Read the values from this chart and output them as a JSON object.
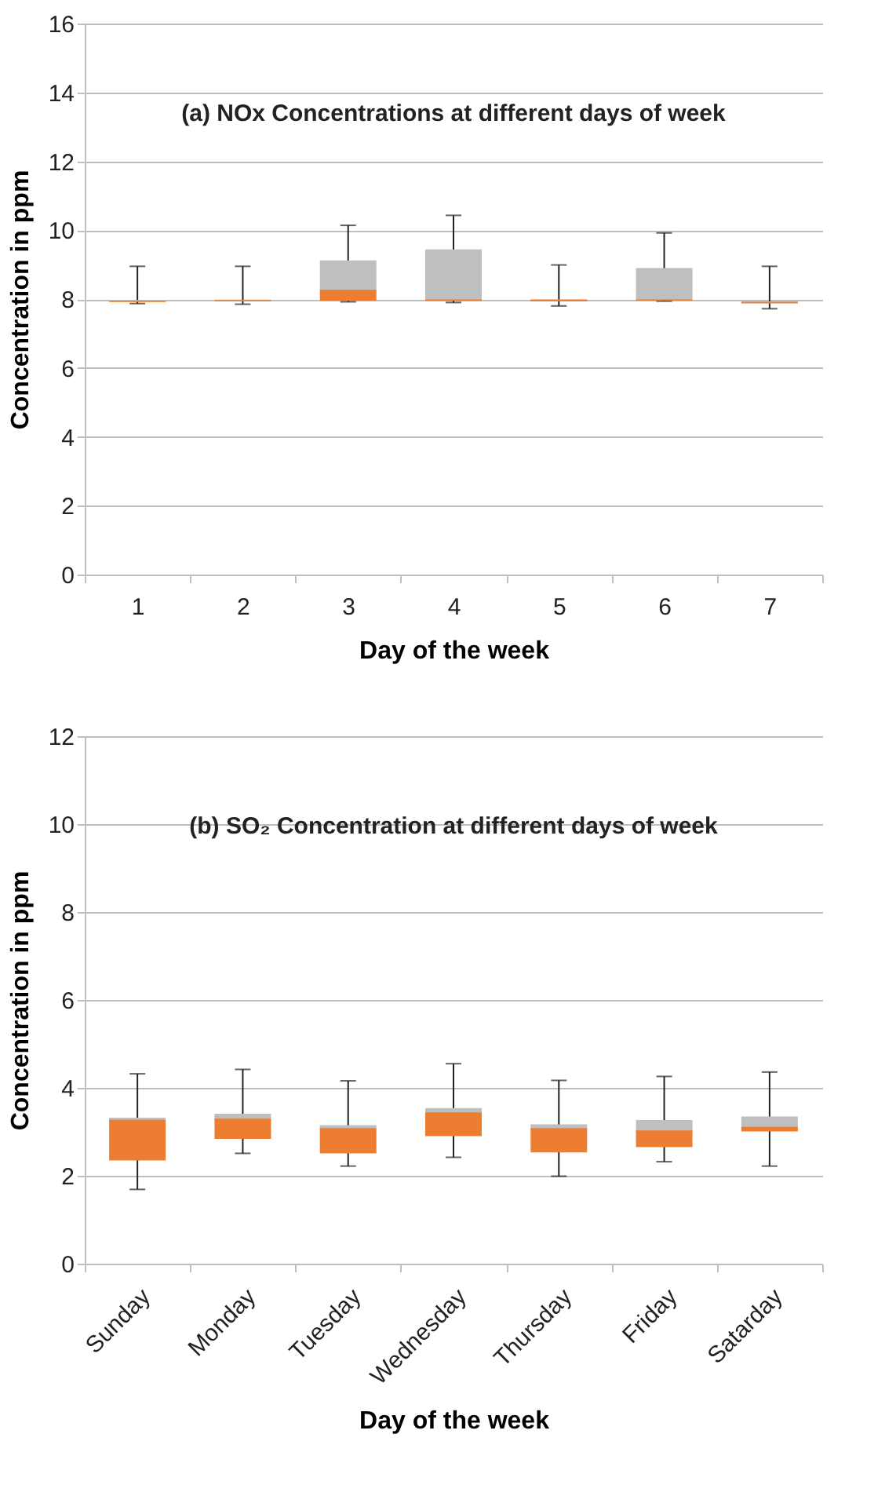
{
  "chart_data": [
    {
      "type": "box",
      "title": "(a) NOx Concentrations at different days of week",
      "xlabel": "Day of the week",
      "ylabel": "Concentration in ppm",
      "categories": [
        "1",
        "2",
        "3",
        "4",
        "5",
        "6",
        "7"
      ],
      "ylim": [
        0,
        16
      ],
      "yticks": [
        0,
        2,
        4,
        6,
        8,
        10,
        12,
        14,
        16
      ],
      "grid": "y",
      "color": "#ed7d31",
      "boxes": [
        {
          "low": 7.87,
          "q1": 7.92,
          "median": 7.93,
          "q3": 7.97,
          "high": 8.95
        },
        {
          "low": 7.85,
          "q1": 7.93,
          "median": 7.96,
          "q3": 7.97,
          "high": 8.95
        },
        {
          "low": 7.92,
          "q1": 7.95,
          "median": 8.25,
          "q3": 9.12,
          "high": 10.14
        },
        {
          "low": 7.9,
          "q1": 7.95,
          "median": 7.97,
          "q3": 9.44,
          "high": 10.43
        },
        {
          "low": 7.8,
          "q1": 7.93,
          "median": 7.97,
          "q3": 7.98,
          "high": 8.99
        },
        {
          "low": 7.94,
          "q1": 7.96,
          "median": 7.97,
          "q3": 8.9,
          "high": 9.92
        },
        {
          "low": 7.72,
          "q1": 7.88,
          "median": 7.9,
          "q3": 7.93,
          "high": 8.95
        }
      ]
    },
    {
      "type": "box",
      "title": "(b) SO₂ Concentration at different days of week",
      "xlabel": "Day of the week",
      "ylabel": "Concentration in ppm",
      "categories": [
        "Sunday",
        "Monday",
        "Tuesday",
        "Wednesday",
        "Thursday",
        "Friday",
        "Satarday"
      ],
      "ylim": [
        0,
        12
      ],
      "yticks": [
        0,
        2,
        4,
        6,
        8,
        10,
        12
      ],
      "grid": "y",
      "color": "#ed7d31",
      "boxes": [
        {
          "low": 1.69,
          "q1": 2.35,
          "median": 3.26,
          "q3": 3.32,
          "high": 4.32
        },
        {
          "low": 2.51,
          "q1": 2.84,
          "median": 3.29,
          "q3": 3.41,
          "high": 4.42
        },
        {
          "low": 2.22,
          "q1": 2.51,
          "median": 3.07,
          "q3": 3.15,
          "high": 4.16
        },
        {
          "low": 2.42,
          "q1": 2.9,
          "median": 3.43,
          "q3": 3.54,
          "high": 4.55
        },
        {
          "low": 1.99,
          "q1": 2.53,
          "median": 3.07,
          "q3": 3.17,
          "high": 4.17
        },
        {
          "low": 2.32,
          "q1": 2.65,
          "median": 3.02,
          "q3": 3.27,
          "high": 4.26
        },
        {
          "low": 2.22,
          "q1": 3.01,
          "median": 3.1,
          "q3": 3.35,
          "high": 4.36
        }
      ]
    }
  ]
}
